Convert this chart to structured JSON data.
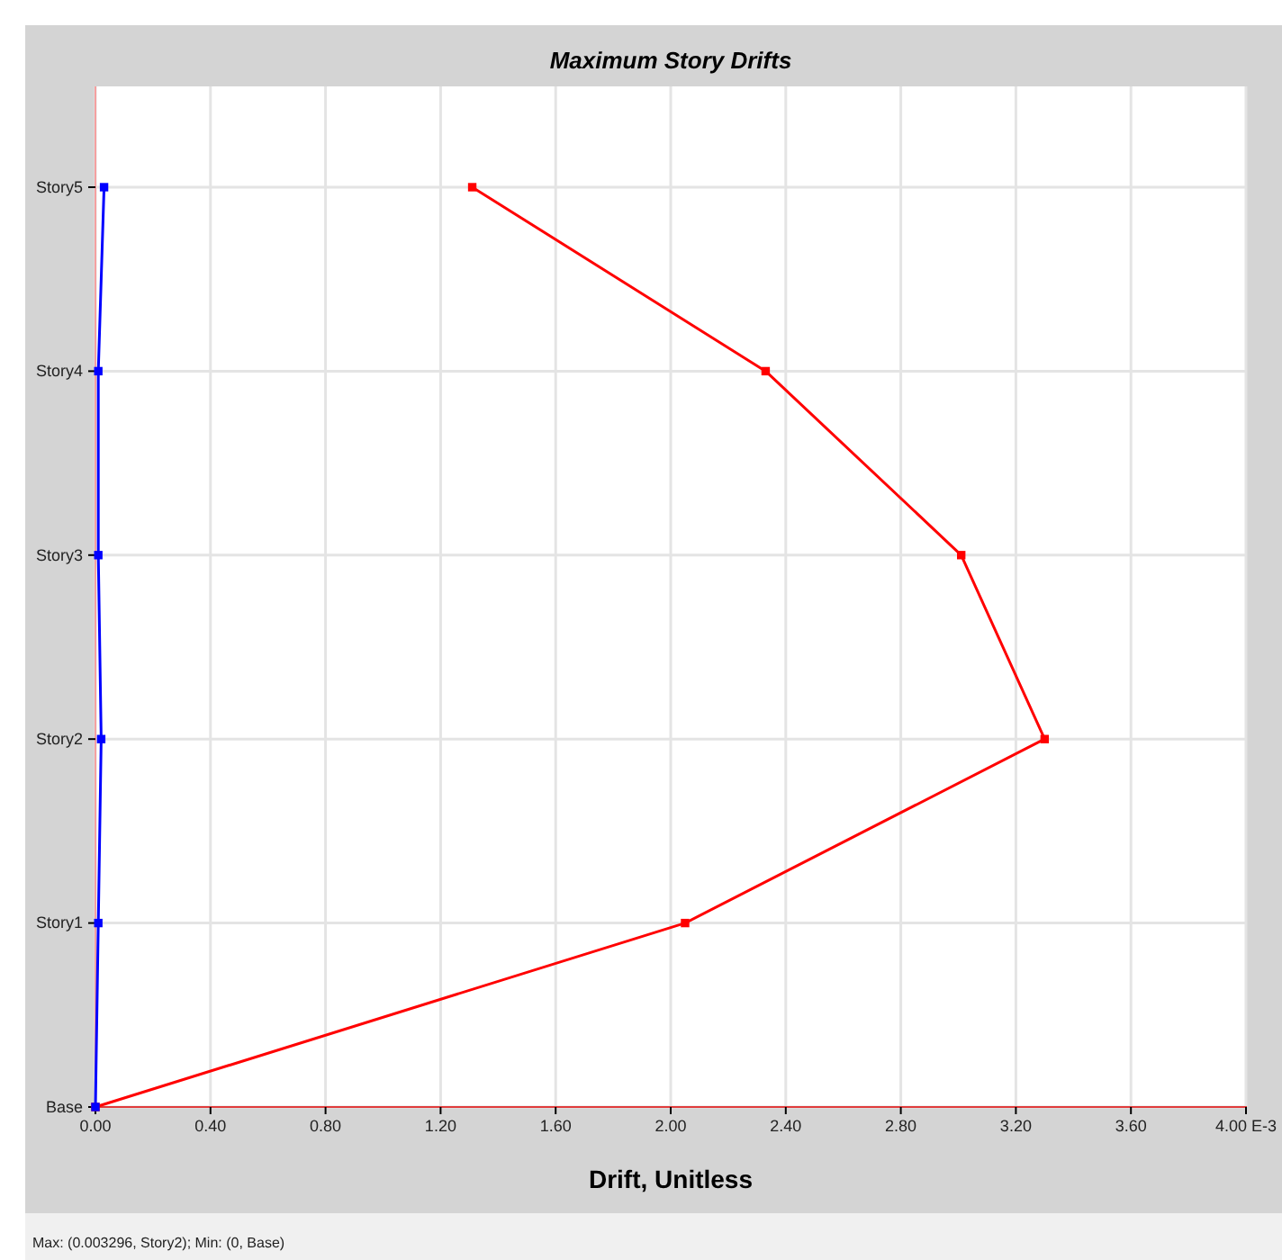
{
  "chart_data": {
    "type": "line",
    "orientation": "horizontal",
    "title": "Maximum Story Drifts",
    "xlabel": "Drift, Unitless",
    "categories": [
      "Story5",
      "Story4",
      "Story3",
      "Story2",
      "Story1",
      "Base"
    ],
    "series": [
      {
        "color": "#ff0000",
        "values": [
          1.31,
          2.33,
          3.01,
          3.3,
          2.05,
          0
        ]
      },
      {
        "color": "#0000ff",
        "values": [
          0.03,
          0.01,
          0.01,
          0.02,
          0.01,
          0
        ]
      }
    ],
    "xlim": [
      0,
      4
    ],
    "xticks": [
      {
        "value": 0,
        "label": "0.00"
      },
      {
        "value": 0.4,
        "label": "0.40"
      },
      {
        "value": 0.8,
        "label": "0.80"
      },
      {
        "value": 1.2,
        "label": "1.20"
      },
      {
        "value": 1.6,
        "label": "1.60"
      },
      {
        "value": 2,
        "label": "2.00"
      },
      {
        "value": 2.4,
        "label": "2.40"
      },
      {
        "value": 2.8,
        "label": "2.80"
      },
      {
        "value": 3.2,
        "label": "3.20"
      },
      {
        "value": 3.6,
        "label": "3.60"
      },
      {
        "value": 4,
        "label": "4.00 E-3"
      }
    ],
    "grid": true,
    "marker": "square",
    "line_style": "solid",
    "annotations": [
      "Max: (0.003296, Story2);  Min: (0, Base)"
    ]
  }
}
